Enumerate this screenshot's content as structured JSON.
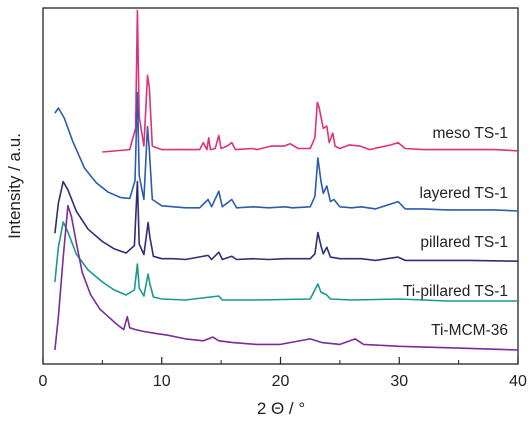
{
  "chart_data": {
    "type": "line",
    "xlabel": "2 Θ / °",
    "ylabel": "Intensity / a.u.",
    "xlim": [
      0,
      40
    ],
    "xticks": [
      "0",
      "10",
      "20",
      "30",
      "40"
    ],
    "grid": false,
    "legend": "labels placed beside each trace on the right",
    "series": [
      {
        "name": "meso TS-1",
        "color": "#e0307a",
        "points": [
          [
            5,
            0.0
          ],
          [
            7.3,
            0.02
          ],
          [
            7.8,
            0.2
          ],
          [
            7.95,
            1.2
          ],
          [
            8.1,
            0.3
          ],
          [
            8.5,
            0.05
          ],
          [
            8.8,
            0.65
          ],
          [
            8.95,
            0.55
          ],
          [
            9.2,
            0.05
          ],
          [
            10,
            0.02
          ],
          [
            11,
            0.02
          ],
          [
            13.2,
            0.02
          ],
          [
            13.5,
            0.08
          ],
          [
            13.8,
            0.02
          ],
          [
            13.95,
            0.12
          ],
          [
            14.1,
            0.02
          ],
          [
            14.5,
            0.03
          ],
          [
            14.8,
            0.14
          ],
          [
            15.0,
            0.03
          ],
          [
            15.5,
            0.05
          ],
          [
            15.9,
            0.08
          ],
          [
            16.2,
            0.02
          ],
          [
            17.7,
            0.03
          ],
          [
            18,
            0.02
          ],
          [
            19.2,
            0.05
          ],
          [
            20.3,
            0.05
          ],
          [
            20.8,
            0.07
          ],
          [
            21.5,
            0.03
          ],
          [
            22.5,
            0.03
          ],
          [
            22.9,
            0.12
          ],
          [
            23.1,
            0.42
          ],
          [
            23.25,
            0.38
          ],
          [
            23.4,
            0.3
          ],
          [
            23.6,
            0.2
          ],
          [
            23.9,
            0.22
          ],
          [
            24.1,
            0.08
          ],
          [
            24.4,
            0.16
          ],
          [
            24.6,
            0.05
          ],
          [
            25,
            0.03
          ],
          [
            25.8,
            0.06
          ],
          [
            26.7,
            0.05
          ],
          [
            27.5,
            0.02
          ],
          [
            29.3,
            0.06
          ],
          [
            29.9,
            0.08
          ],
          [
            30.5,
            0.03
          ],
          [
            32,
            0.02
          ],
          [
            34,
            0.02
          ],
          [
            36,
            0.02
          ],
          [
            38,
            0.02
          ],
          [
            40,
            0.01
          ]
        ]
      },
      {
        "name": "layered TS-1",
        "color": "#2a5cb0",
        "points": [
          [
            1.0,
            0.95
          ],
          [
            1.3,
            1.0
          ],
          [
            1.8,
            0.9
          ],
          [
            2.5,
            0.68
          ],
          [
            3.5,
            0.42
          ],
          [
            4.5,
            0.28
          ],
          [
            5.5,
            0.19
          ],
          [
            6.5,
            0.14
          ],
          [
            7.3,
            0.13
          ],
          [
            7.75,
            0.3
          ],
          [
            7.95,
            1.15
          ],
          [
            8.1,
            0.35
          ],
          [
            8.5,
            0.12
          ],
          [
            8.8,
            0.82
          ],
          [
            8.95,
            0.6
          ],
          [
            9.2,
            0.12
          ],
          [
            10,
            0.06
          ],
          [
            11,
            0.05
          ],
          [
            12,
            0.04
          ],
          [
            13.2,
            0.04
          ],
          [
            13.9,
            0.12
          ],
          [
            14.2,
            0.05
          ],
          [
            14.8,
            0.2
          ],
          [
            15.1,
            0.05
          ],
          [
            15.9,
            0.12
          ],
          [
            16.3,
            0.04
          ],
          [
            17.7,
            0.05
          ],
          [
            19,
            0.04
          ],
          [
            20.4,
            0.05
          ],
          [
            21,
            0.04
          ],
          [
            22.5,
            0.05
          ],
          [
            22.9,
            0.15
          ],
          [
            23.15,
            0.52
          ],
          [
            23.4,
            0.3
          ],
          [
            23.6,
            0.18
          ],
          [
            23.9,
            0.25
          ],
          [
            24.2,
            0.1
          ],
          [
            24.5,
            0.12
          ],
          [
            25,
            0.05
          ],
          [
            26,
            0.04
          ],
          [
            26.8,
            0.05
          ],
          [
            28,
            0.03
          ],
          [
            29.9,
            0.1
          ],
          [
            30.5,
            0.03
          ],
          [
            32,
            0.03
          ],
          [
            34,
            0.02
          ],
          [
            36,
            0.02
          ],
          [
            38,
            0.02
          ],
          [
            40,
            0.01
          ]
        ]
      },
      {
        "name": "pillared TS-1",
        "color": "#2e2f72",
        "points": [
          [
            1.0,
            0.35
          ],
          [
            1.3,
            0.72
          ],
          [
            1.7,
            0.98
          ],
          [
            2.1,
            0.88
          ],
          [
            2.8,
            0.62
          ],
          [
            3.8,
            0.4
          ],
          [
            5,
            0.25
          ],
          [
            6,
            0.16
          ],
          [
            7,
            0.11
          ],
          [
            7.7,
            0.2
          ],
          [
            7.95,
            0.98
          ],
          [
            8.1,
            0.22
          ],
          [
            8.5,
            0.09
          ],
          [
            8.85,
            0.48
          ],
          [
            9.0,
            0.3
          ],
          [
            9.3,
            0.07
          ],
          [
            10,
            0.04
          ],
          [
            11,
            0.04
          ],
          [
            12,
            0.03
          ],
          [
            13.9,
            0.08
          ],
          [
            14.2,
            0.03
          ],
          [
            14.8,
            0.12
          ],
          [
            15.1,
            0.03
          ],
          [
            15.9,
            0.07
          ],
          [
            16.3,
            0.03
          ],
          [
            17.7,
            0.04
          ],
          [
            19,
            0.03
          ],
          [
            20.4,
            0.04
          ],
          [
            22.5,
            0.04
          ],
          [
            22.9,
            0.1
          ],
          [
            23.15,
            0.36
          ],
          [
            23.4,
            0.2
          ],
          [
            23.6,
            0.1
          ],
          [
            23.9,
            0.18
          ],
          [
            24.2,
            0.06
          ],
          [
            25,
            0.04
          ],
          [
            26.8,
            0.04
          ],
          [
            28,
            0.02
          ],
          [
            29.9,
            0.06
          ],
          [
            30.5,
            0.02
          ],
          [
            32,
            0.02
          ],
          [
            36,
            0.02
          ],
          [
            40,
            0.01
          ]
        ]
      },
      {
        "name": "Ti-pillared TS-1",
        "color": "#1a9a8e",
        "points": [
          [
            1.0,
            0.2
          ],
          [
            1.3,
            0.55
          ],
          [
            1.7,
            0.8
          ],
          [
            2.1,
            0.7
          ],
          [
            2.8,
            0.48
          ],
          [
            3.8,
            0.32
          ],
          [
            5,
            0.2
          ],
          [
            6,
            0.12
          ],
          [
            7,
            0.07
          ],
          [
            7.7,
            0.12
          ],
          [
            7.95,
            0.38
          ],
          [
            8.1,
            0.14
          ],
          [
            8.5,
            0.06
          ],
          [
            8.85,
            0.28
          ],
          [
            9.0,
            0.18
          ],
          [
            9.3,
            0.05
          ],
          [
            10,
            0.03
          ],
          [
            12,
            0.02
          ],
          [
            14.8,
            0.06
          ],
          [
            15.1,
            0.02
          ],
          [
            18,
            0.02
          ],
          [
            22.5,
            0.03
          ],
          [
            23.15,
            0.18
          ],
          [
            23.4,
            0.1
          ],
          [
            23.9,
            0.07
          ],
          [
            24.2,
            0.03
          ],
          [
            26,
            0.02
          ],
          [
            30,
            0.03
          ],
          [
            34,
            0.01
          ],
          [
            40,
            0.01
          ]
        ]
      },
      {
        "name": "Ti-MCM-36",
        "color": "#7a2c9a",
        "points": [
          [
            1.0,
            0.0
          ],
          [
            1.3,
            0.18
          ],
          [
            1.7,
            0.5
          ],
          [
            2.1,
            0.78
          ],
          [
            2.4,
            0.72
          ],
          [
            2.8,
            0.58
          ],
          [
            3.3,
            0.42
          ],
          [
            4,
            0.3
          ],
          [
            4.8,
            0.22
          ],
          [
            5.5,
            0.18
          ],
          [
            6.2,
            0.14
          ],
          [
            6.8,
            0.11
          ],
          [
            7.1,
            0.18
          ],
          [
            7.3,
            0.12
          ],
          [
            7.8,
            0.11
          ],
          [
            8.5,
            0.1
          ],
          [
            9.5,
            0.09
          ],
          [
            10.5,
            0.08
          ],
          [
            12,
            0.06
          ],
          [
            13.5,
            0.05
          ],
          [
            14.3,
            0.07
          ],
          [
            14.8,
            0.05
          ],
          [
            16,
            0.04
          ],
          [
            18,
            0.03
          ],
          [
            20,
            0.03
          ],
          [
            22.5,
            0.06
          ],
          [
            23.5,
            0.04
          ],
          [
            25,
            0.03
          ],
          [
            26.3,
            0.06
          ],
          [
            27,
            0.03
          ],
          [
            30,
            0.02
          ],
          [
            35,
            0.01
          ],
          [
            40,
            0.0
          ]
        ]
      }
    ]
  }
}
